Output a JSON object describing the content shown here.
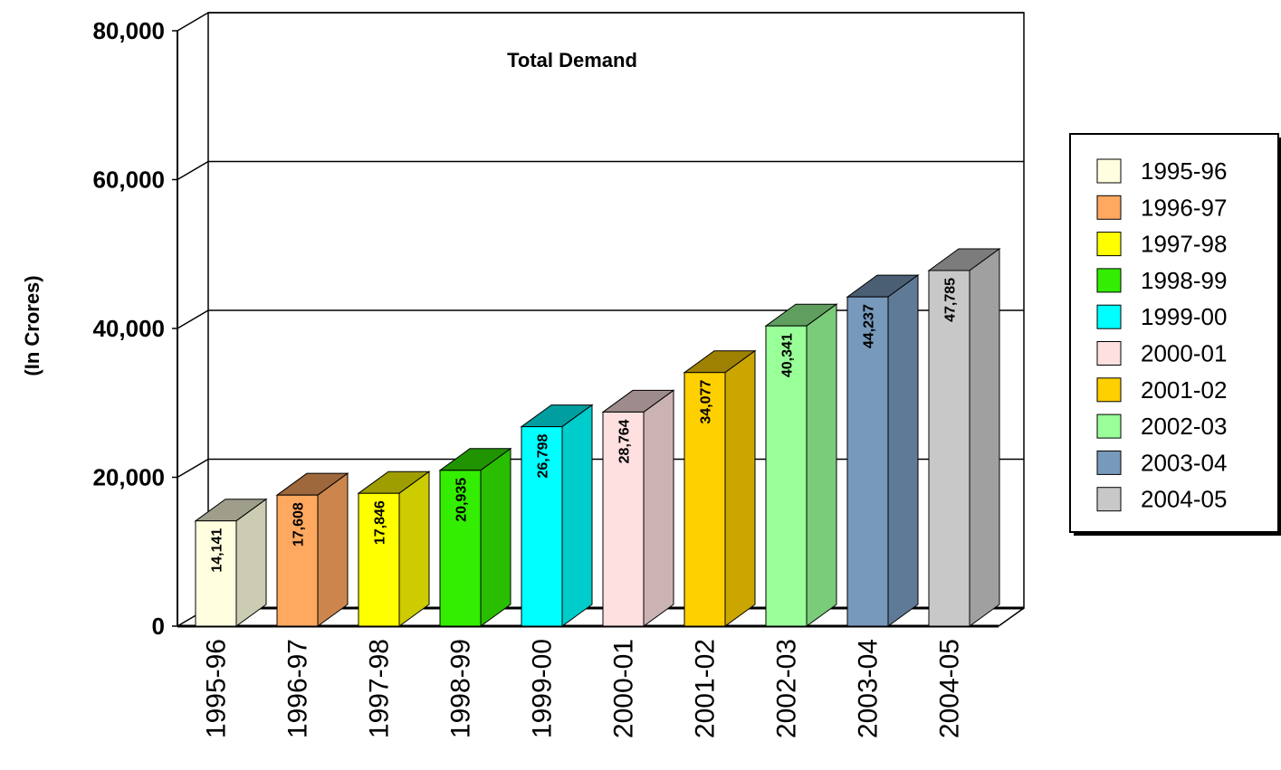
{
  "chart_data": {
    "type": "bar",
    "title": "Total Demand",
    "xlabel": "",
    "ylabel": "(In Crores)",
    "ylim": [
      0,
      80000
    ],
    "yticks": [
      0,
      20000,
      40000,
      60000,
      80000
    ],
    "ytick_labels": [
      "0",
      "20,000",
      "40,000",
      "60,000",
      "80,000"
    ],
    "grid": true,
    "style": "3d",
    "legend_position": "right",
    "categories": [
      "1995-96",
      "1996-97",
      "1997-98",
      "1998-99",
      "1999-00",
      "2000-01",
      "2001-02",
      "2002-03",
      "2003-04",
      "2004-05"
    ],
    "values": [
      14141,
      17608,
      17846,
      20935,
      26798,
      28764,
      34077,
      40341,
      44237,
      47785
    ],
    "value_labels": [
      "14,141",
      "17,608",
      "17,846",
      "20,935",
      "26,798",
      "28,764",
      "34,077",
      "40,341",
      "44,237",
      "47,785"
    ],
    "colors": [
      "#FFFFE0",
      "#FFA860",
      "#FFFF00",
      "#33EE00",
      "#00FFFF",
      "#FFE0E0",
      "#FFD000",
      "#99FF99",
      "#7799BB",
      "#C8C8C8"
    ],
    "legend": [
      "1995-96",
      "1996-97",
      "1997-98",
      "1998-99",
      "1999-00",
      "2000-01",
      "2001-02",
      "2002-03",
      "2003-04",
      "2004-05"
    ]
  }
}
